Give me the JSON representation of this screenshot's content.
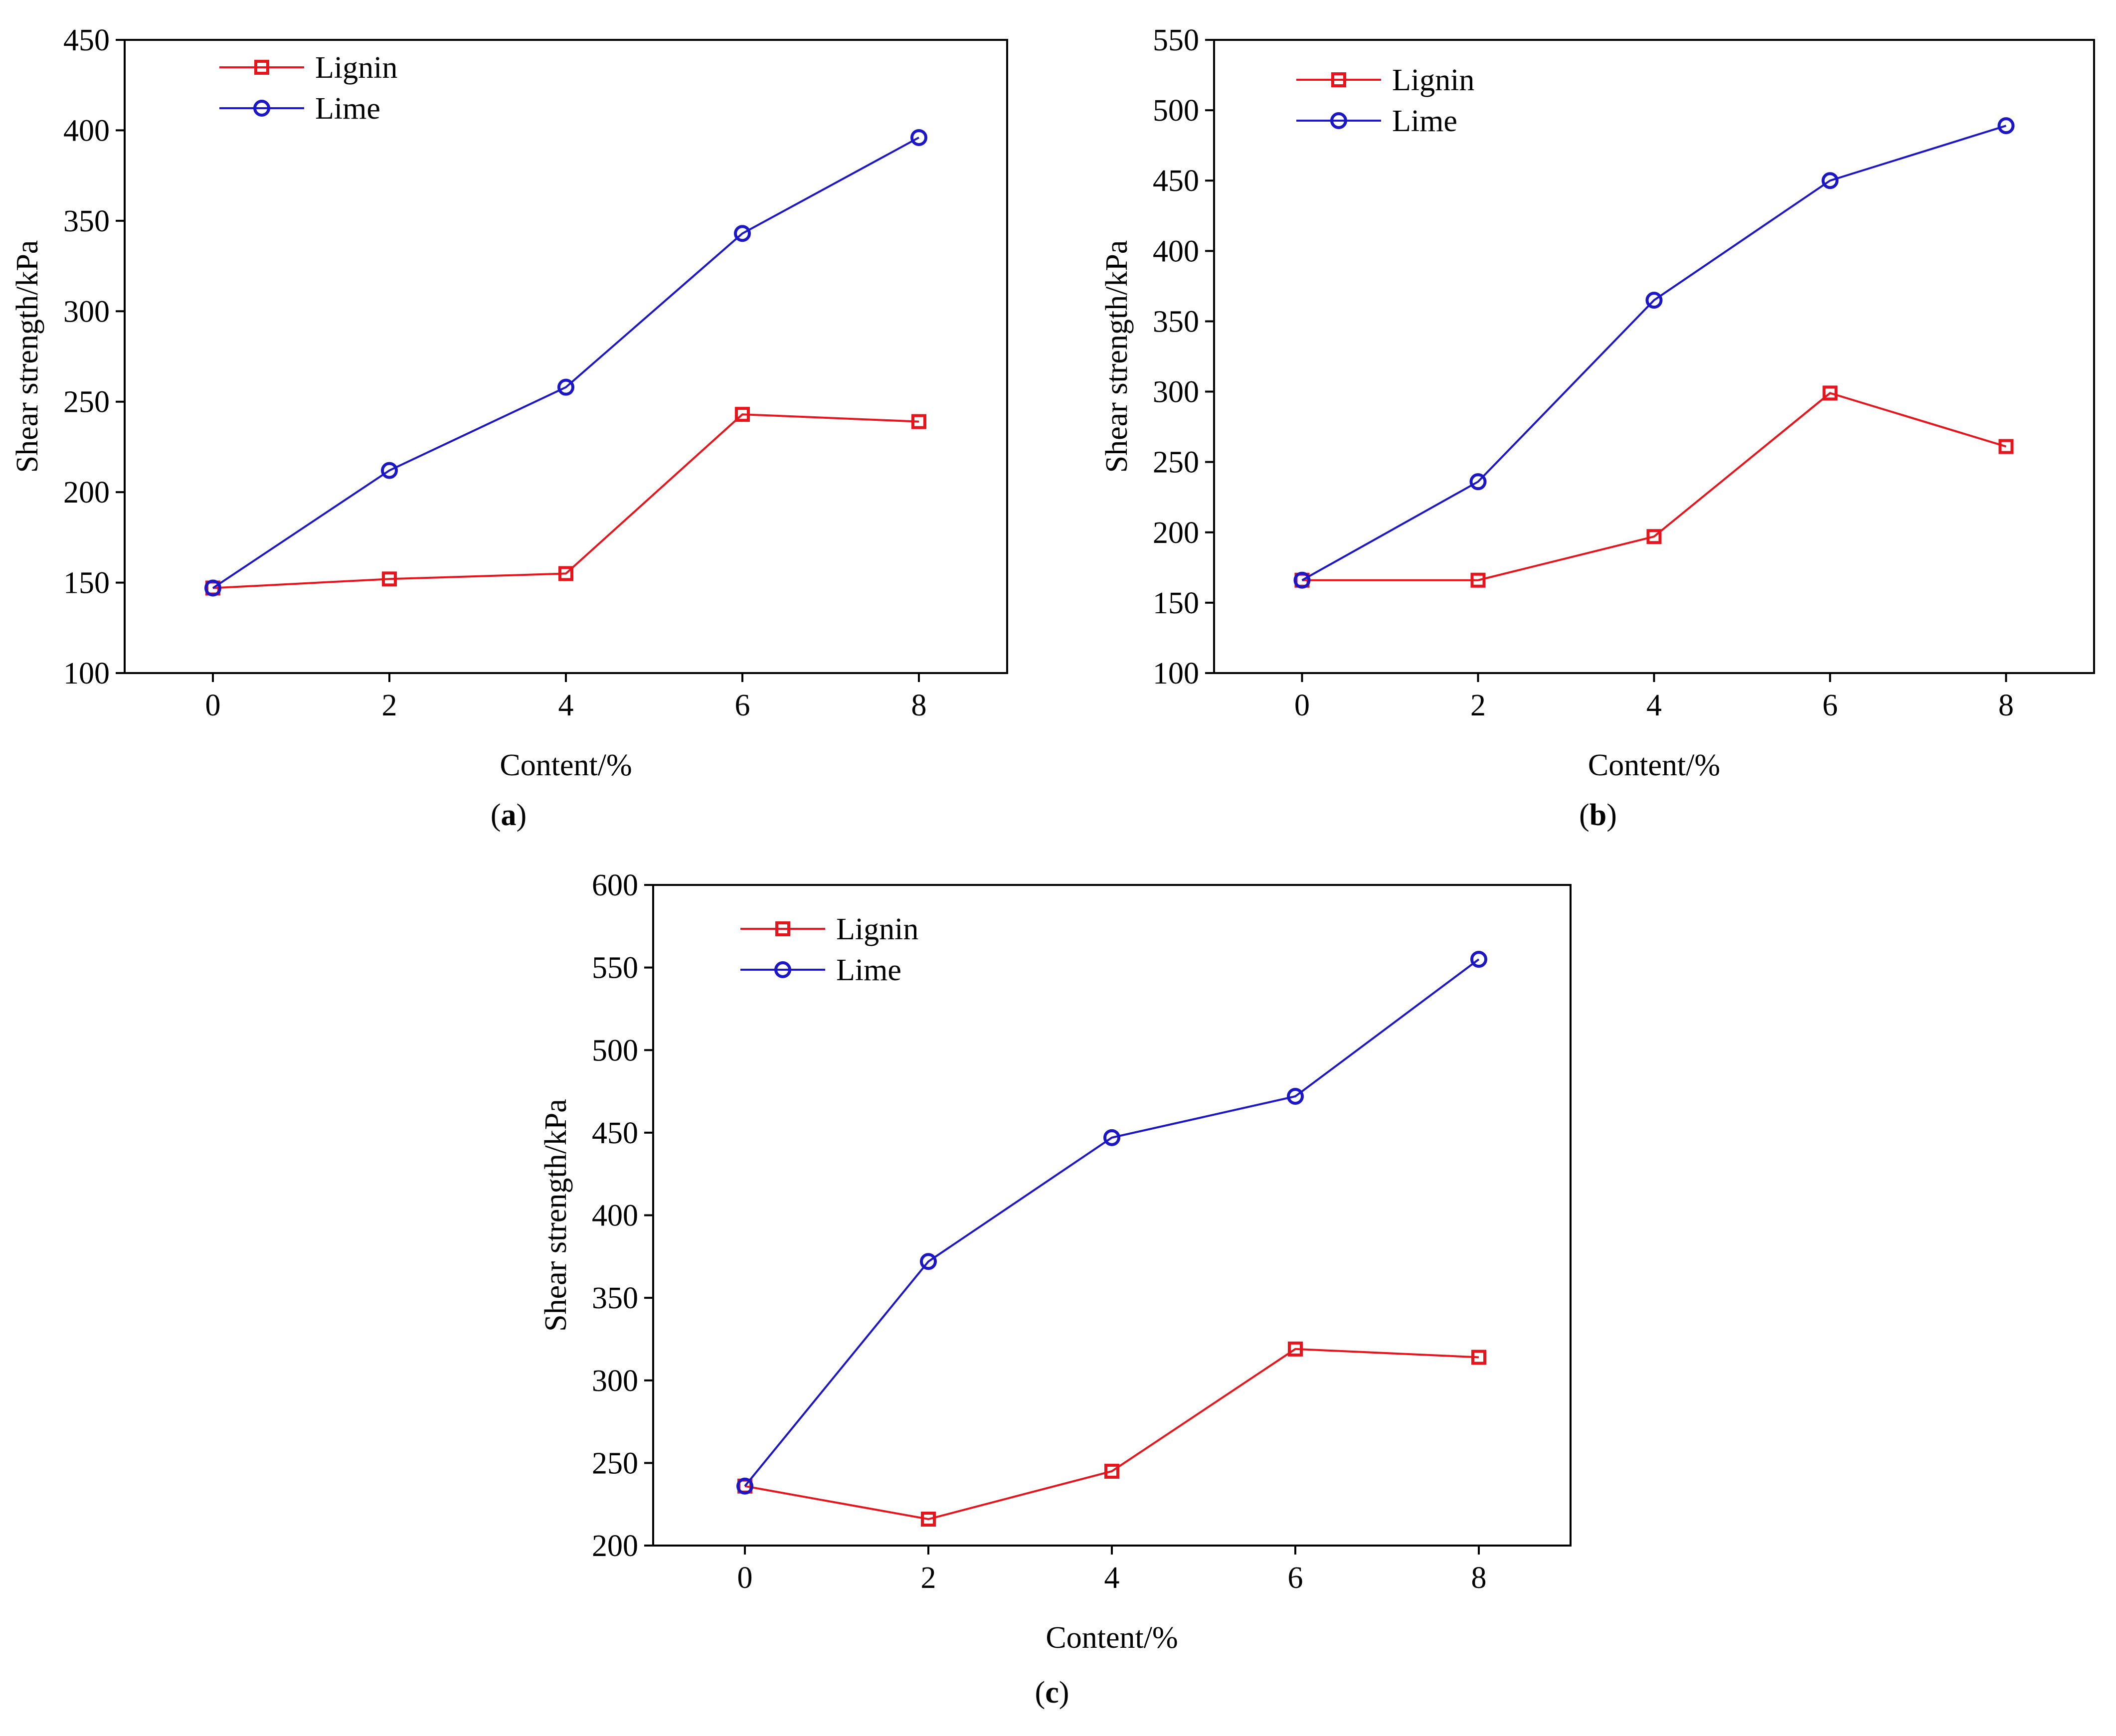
{
  "colors": {
    "lignin": "#e8141b",
    "lime": "#1b16c8",
    "axis": "#000000",
    "background": "#ffffff"
  },
  "chart_data": [
    {
      "type": "line",
      "panel_label": "a",
      "xlabel": "Content/%",
      "ylabel": "Shear strength/kPa",
      "x": [
        0,
        2,
        4,
        6,
        8
      ],
      "x_ticks": [
        "0",
        "2",
        "4",
        "6",
        "8"
      ],
      "xlim": [
        -1,
        9
      ],
      "ylim": [
        100,
        450
      ],
      "y_ticks": [
        "100",
        "150",
        "200",
        "250",
        "300",
        "350",
        "400",
        "450"
      ],
      "legend_position": "top-left",
      "series": [
        {
          "name": "Lignin",
          "marker": "square",
          "color_key": "lignin",
          "values": [
            147,
            152,
            155,
            243,
            239
          ]
        },
        {
          "name": "Lime",
          "marker": "circle",
          "color_key": "lime",
          "values": [
            147,
            212,
            258,
            343,
            396
          ]
        }
      ]
    },
    {
      "type": "line",
      "panel_label": "b",
      "xlabel": "Content/%",
      "ylabel": "Shear strength/kPa",
      "x": [
        0,
        2,
        4,
        6,
        8
      ],
      "x_ticks": [
        "0",
        "2",
        "4",
        "6",
        "8"
      ],
      "xlim": [
        -1,
        9
      ],
      "ylim": [
        100,
        550
      ],
      "y_ticks": [
        "100",
        "150",
        "200",
        "250",
        "300",
        "350",
        "400",
        "450",
        "500",
        "550"
      ],
      "legend_position": "top-left",
      "series": [
        {
          "name": "Lignin",
          "marker": "square",
          "color_key": "lignin",
          "values": [
            166,
            166,
            197,
            299,
            261
          ]
        },
        {
          "name": "Lime",
          "marker": "circle",
          "color_key": "lime",
          "values": [
            166,
            236,
            365,
            450,
            489
          ]
        }
      ]
    },
    {
      "type": "line",
      "panel_label": "c",
      "xlabel": "Content/%",
      "ylabel": "Shear strength/kPa",
      "x": [
        0,
        2,
        4,
        6,
        8
      ],
      "x_ticks": [
        "0",
        "2",
        "4",
        "6",
        "8"
      ],
      "xlim": [
        -1,
        9
      ],
      "ylim": [
        200,
        600
      ],
      "y_ticks": [
        "200",
        "250",
        "300",
        "350",
        "400",
        "450",
        "500",
        "550",
        "600"
      ],
      "legend_position": "top-left",
      "series": [
        {
          "name": "Lignin",
          "marker": "square",
          "color_key": "lignin",
          "values": [
            236,
            216,
            245,
            319,
            314
          ]
        },
        {
          "name": "Lime",
          "marker": "circle",
          "color_key": "lime",
          "values": [
            236,
            372,
            447,
            472,
            555
          ]
        }
      ]
    }
  ]
}
